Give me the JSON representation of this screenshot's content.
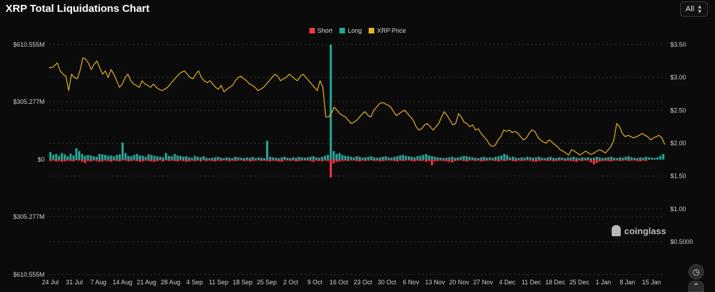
{
  "header": {
    "title": "XRP Total Liquidations Chart"
  },
  "range_select": {
    "value": "All",
    "icon": "chevron-updown-icon"
  },
  "watermark": {
    "text": "coinglass"
  },
  "floating_buttons": [
    {
      "icon": "history-icon"
    },
    {
      "icon": "chevron-up-icon"
    }
  ],
  "colors": {
    "short": "#f23645",
    "long": "#26a69a",
    "price": "#e8b423",
    "grid": "#2a2a2a"
  },
  "chart_data": {
    "type": "bar",
    "title": "XRP Total Liquidations Chart",
    "legend": {
      "position": "top-center",
      "entries": [
        "Short",
        "Long",
        "XRP Price"
      ]
    },
    "grid": true,
    "x": {
      "tick_labels": [
        "24 Jul",
        "31 Jul",
        "7 Aug",
        "14 Aug",
        "21 Aug",
        "28 Aug",
        "4 Sep",
        "11 Sep",
        "18 Sep",
        "25 Sep",
        "2 Oct",
        "9 Oct",
        "16 Oct",
        "23 Oct",
        "30 Oct",
        "6 Nov",
        "13 Nov",
        "20 Nov",
        "27 Nov",
        "4 Dec",
        "11 Dec",
        "18 Dec",
        "25 Dec",
        "1 Jan",
        "8 Jan",
        "15 Jan"
      ]
    },
    "y_left": {
      "tick_labels": [
        "$610.555M",
        "$305.277M",
        "$0",
        "$305.277M",
        "$610.555M"
      ],
      "range": [
        -610.555,
        610.555
      ],
      "unit": "USD millions"
    },
    "y_right": {
      "tick_labels": [
        "$3.50",
        "$3.00",
        "$2.50",
        "$2.00",
        "$1.50",
        "$1.00",
        "$0.5000"
      ],
      "range": [
        0.5,
        3.5
      ]
    },
    "series": [
      {
        "name": "Long",
        "type": "bar",
        "values": [
          40,
          25,
          30,
          20,
          35,
          28,
          18,
          32,
          22,
          60,
          45,
          30,
          20,
          25,
          22,
          18,
          15,
          30,
          28,
          25,
          20,
          22,
          18,
          25,
          28,
          90,
          35,
          20,
          18,
          25,
          30,
          22,
          20,
          15,
          28,
          25,
          20,
          18,
          15,
          12,
          35,
          20,
          18,
          30,
          22,
          20,
          15,
          18,
          12,
          10,
          20,
          15,
          12,
          18,
          10,
          8,
          10,
          12,
          15,
          10,
          8,
          12,
          10,
          8,
          15,
          12,
          10,
          8,
          12,
          10,
          15,
          8,
          12,
          10,
          8,
          100,
          15,
          12,
          10,
          8,
          12,
          15,
          10,
          8,
          12,
          10,
          15,
          12,
          10,
          12,
          15,
          18,
          12,
          10,
          15,
          20,
          25,
          610.555,
          45,
          30,
          35,
          25,
          20,
          18,
          15,
          12,
          18,
          15,
          10,
          12,
          15,
          18,
          12,
          10,
          12,
          15,
          18,
          12,
          10,
          15,
          18,
          22,
          25,
          20,
          18,
          15,
          12,
          18,
          20,
          25,
          30,
          22,
          18,
          15,
          12,
          10,
          8,
          10,
          12,
          15,
          10,
          12,
          15,
          20,
          18,
          15,
          12,
          10,
          8,
          12,
          15,
          10,
          12,
          10,
          15,
          18,
          22,
          30,
          25,
          12,
          15,
          10,
          8,
          12,
          10,
          15,
          12,
          10,
          12,
          15,
          10,
          8,
          12,
          15,
          10,
          8,
          12,
          10,
          8,
          10,
          12,
          15,
          10,
          8,
          12,
          10,
          12,
          8,
          10,
          15,
          12,
          8,
          10,
          12,
          15,
          10,
          8,
          12,
          10,
          15,
          18,
          12,
          10,
          8,
          12,
          10,
          15,
          12,
          10,
          8,
          12,
          20,
          30
        ]
      },
      {
        "name": "Short",
        "type": "bar",
        "values": [
          8,
          6,
          10,
          8,
          12,
          10,
          6,
          8,
          10,
          5,
          6,
          12,
          18,
          8,
          10,
          6,
          8,
          12,
          10,
          6,
          8,
          12,
          6,
          8,
          10,
          5,
          6,
          10,
          8,
          6,
          8,
          12,
          10,
          6,
          8,
          10,
          12,
          8,
          6,
          10,
          5,
          8,
          6,
          8,
          10,
          6,
          8,
          12,
          10,
          6,
          8,
          6,
          10,
          5,
          8,
          6,
          8,
          10,
          6,
          8,
          5,
          6,
          10,
          6,
          8,
          6,
          5,
          8,
          6,
          10,
          8,
          6,
          5,
          8,
          6,
          8,
          10,
          6,
          8,
          10,
          12,
          6,
          5,
          8,
          6,
          10,
          8,
          6,
          5,
          6,
          8,
          12,
          6,
          8,
          10,
          6,
          8,
          95,
          20,
          12,
          10,
          8,
          6,
          8,
          5,
          6,
          8,
          10,
          6,
          8,
          6,
          5,
          8,
          6,
          10,
          8,
          6,
          5,
          6,
          8,
          10,
          6,
          8,
          6,
          5,
          8,
          10,
          6,
          8,
          6,
          12,
          8,
          30,
          10,
          8,
          6,
          8,
          10,
          12,
          15,
          8,
          6,
          5,
          8,
          10,
          6,
          5,
          8,
          6,
          10,
          8,
          6,
          5,
          6,
          8,
          10,
          6,
          8,
          6,
          5,
          8,
          10,
          6,
          8,
          6,
          5,
          8,
          10,
          12,
          8,
          6,
          5,
          8,
          6,
          10,
          8,
          6,
          5,
          8,
          6,
          8,
          10,
          12,
          6,
          8,
          5,
          6,
          15,
          25,
          18,
          10,
          8,
          6,
          8,
          10,
          6,
          5,
          8,
          6,
          5,
          8,
          6,
          5,
          8,
          10,
          6,
          8
        ]
      },
      {
        "name": "XRP Price",
        "type": "line",
        "axis": "right",
        "x_labels_ref": "x.tick_labels",
        "values": [
          3.15,
          3.15,
          3.18,
          3.22,
          3.1,
          3.05,
          3.02,
          2.8,
          3.05,
          3.0,
          2.98,
          3.1,
          3.3,
          3.28,
          3.22,
          3.12,
          3.2,
          3.25,
          3.15,
          3.05,
          3.1,
          3.0,
          3.12,
          3.05,
          2.95,
          2.85,
          2.9,
          3.0,
          3.05,
          2.95,
          2.9,
          2.88,
          2.85,
          2.95,
          2.9,
          2.88,
          2.85,
          2.9,
          2.85,
          2.82,
          2.8,
          2.82,
          2.85,
          2.9,
          2.95,
          3.0,
          3.05,
          3.08,
          3.1,
          3.05,
          3.0,
          2.98,
          3.05,
          3.1,
          3.0,
          2.95,
          2.92,
          2.95,
          2.9,
          2.85,
          2.82,
          2.88,
          2.78,
          2.82,
          2.85,
          2.88,
          2.95,
          3.0,
          3.02,
          2.98,
          2.95,
          2.9,
          2.88,
          2.85,
          2.8,
          2.82,
          2.85,
          2.9,
          2.95,
          3.0,
          3.05,
          3.02,
          2.95,
          2.98,
          3.0,
          3.05,
          3.02,
          2.98,
          2.95,
          3.02,
          3.05,
          3.0,
          2.95,
          2.9,
          2.85,
          2.8,
          2.95,
          2.85,
          2.4,
          2.4,
          2.45,
          2.55,
          2.5,
          2.45,
          2.42,
          2.4,
          2.35,
          2.3,
          2.32,
          2.35,
          2.4,
          2.45,
          2.48,
          2.42,
          2.4,
          2.5,
          2.55,
          2.6,
          2.62,
          2.6,
          2.58,
          2.55,
          2.48,
          2.42,
          2.45,
          2.48,
          2.5,
          2.45,
          2.4,
          2.35,
          2.25,
          2.2,
          2.22,
          2.28,
          2.3,
          2.25,
          2.2,
          2.25,
          2.3,
          2.4,
          2.48,
          2.42,
          2.35,
          2.28,
          2.3,
          2.45,
          2.4,
          2.32,
          2.3,
          2.25,
          2.28,
          2.2,
          2.22,
          2.15,
          2.1,
          2.05,
          1.98,
          1.95,
          1.97,
          2.05,
          2.1,
          2.2,
          2.18,
          2.2,
          2.16,
          2.18,
          2.15,
          2.1,
          2.05,
          2.08,
          2.15,
          2.2,
          2.18,
          2.1,
          2.05,
          2.02,
          2.0,
          2.05,
          2.02,
          1.98,
          1.95,
          1.9,
          1.88,
          1.85,
          1.82,
          1.9,
          1.88,
          1.85,
          1.82,
          1.85,
          1.88,
          1.85,
          1.83,
          1.85,
          1.88,
          1.9,
          1.88,
          1.85,
          1.9,
          1.95,
          2.05,
          2.3,
          2.25,
          2.15,
          2.1,
          2.12,
          2.1,
          2.08,
          2.1,
          2.12,
          2.15,
          2.12,
          2.1,
          2.05,
          2.08,
          2.1,
          2.12,
          2.08,
          1.98
        ]
      }
    ]
  }
}
